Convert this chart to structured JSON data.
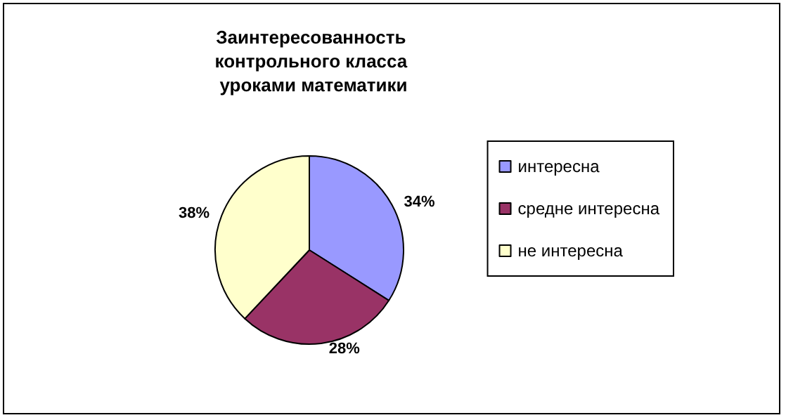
{
  "chart_data": {
    "type": "pie",
    "title": "Заинтересованность контрольного класса уроками математики",
    "categories": [
      "интересна",
      "средне интересна",
      "не интересна"
    ],
    "values": [
      34,
      28,
      38
    ],
    "colors": [
      "#9999ff",
      "#993366",
      "#ffffcc"
    ],
    "value_labels": [
      "34%",
      "28%",
      "38%"
    ],
    "legend": "right"
  }
}
